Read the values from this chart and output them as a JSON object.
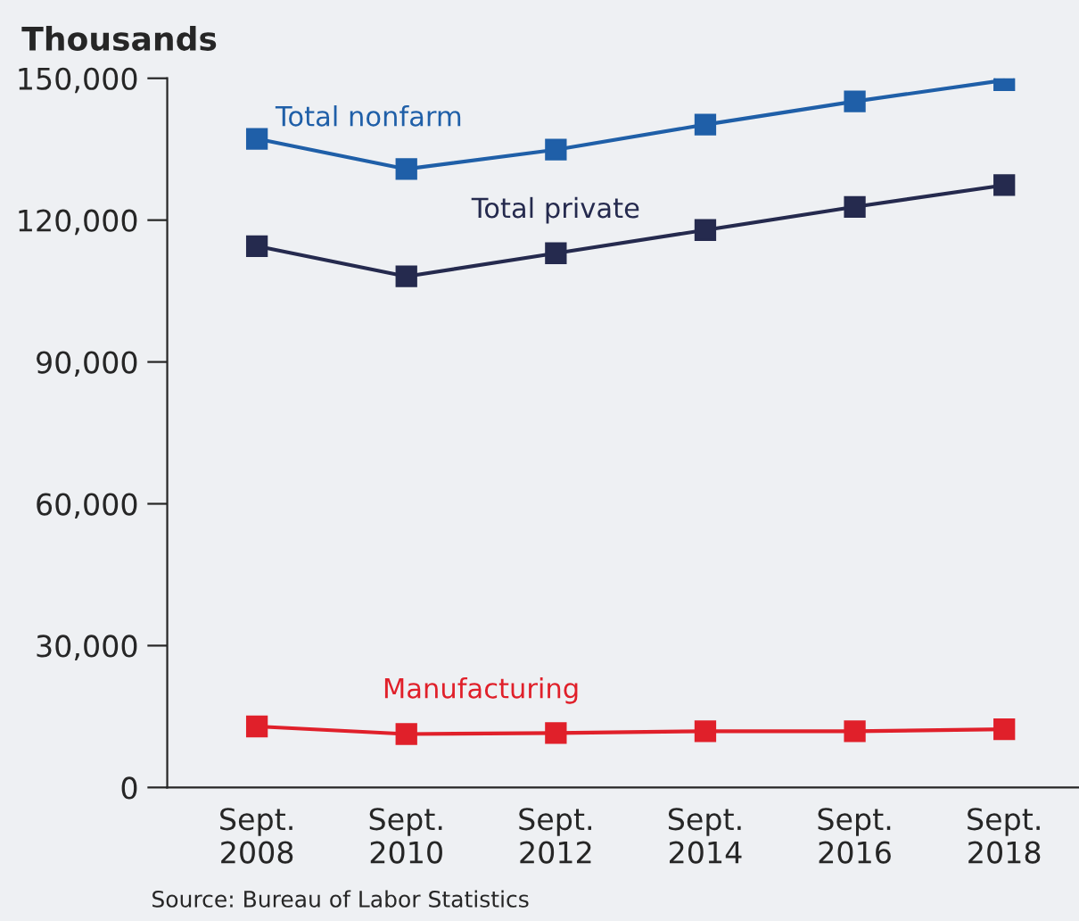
{
  "chart_data": {
    "type": "line",
    "ylabel": "Thousands",
    "categories": [
      "Sept.\n2008",
      "Sept.\n2010",
      "Sept.\n2012",
      "Sept.\n2014",
      "Sept.\n2016",
      "Sept.\n2018"
    ],
    "series": [
      {
        "name": "Total nonfarm",
        "color": "#1f5fa8",
        "values": [
          137200,
          130800,
          134900,
          140200,
          145100,
          149600
        ]
      },
      {
        "name": "Total private",
        "color": "#252a4e",
        "values": [
          114500,
          108100,
          113000,
          117900,
          122800,
          127400
        ]
      },
      {
        "name": "Manufacturing",
        "color": "#e0202a",
        "values": [
          12900,
          11300,
          11500,
          11900,
          11900,
          12300
        ]
      }
    ],
    "ylim": [
      0,
      150000
    ],
    "yticks": [
      {
        "value": 0,
        "label": "0"
      },
      {
        "value": 30000,
        "label": "30,000"
      },
      {
        "value": 60000,
        "label": "60,000"
      },
      {
        "value": 90000,
        "label": "90,000"
      },
      {
        "value": 120000,
        "label": "120,000"
      },
      {
        "value": 150000,
        "label": "150,000"
      }
    ],
    "marker": "square",
    "grid": false,
    "legend": false,
    "annotations": [
      "Source: Bureau of Labor Statistics"
    ]
  }
}
